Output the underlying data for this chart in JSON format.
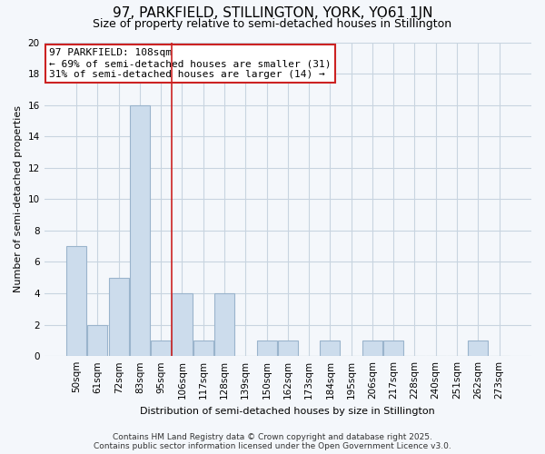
{
  "title": "97, PARKFIELD, STILLINGTON, YORK, YO61 1JN",
  "subtitle": "Size of property relative to semi-detached houses in Stillington",
  "xlabel": "Distribution of semi-detached houses by size in Stillington",
  "ylabel": "Number of semi-detached properties",
  "categories": [
    "50sqm",
    "61sqm",
    "72sqm",
    "83sqm",
    "95sqm",
    "106sqm",
    "117sqm",
    "128sqm",
    "139sqm",
    "150sqm",
    "162sqm",
    "173sqm",
    "184sqm",
    "195sqm",
    "206sqm",
    "217sqm",
    "228sqm",
    "240sqm",
    "251sqm",
    "262sqm",
    "273sqm"
  ],
  "values": [
    7,
    2,
    5,
    16,
    1,
    4,
    1,
    4,
    0,
    1,
    1,
    0,
    1,
    0,
    1,
    1,
    0,
    0,
    0,
    1,
    0
  ],
  "bar_color": "#ccdcec",
  "bar_edge_color": "#9ab4cc",
  "vline_color": "#cc2222",
  "vline_x_index": 4.5,
  "annotation_title": "97 PARKFIELD: 108sqm",
  "annotation_line1": "← 69% of semi-detached houses are smaller (31)",
  "annotation_line2": "31% of semi-detached houses are larger (14) →",
  "annotation_box_facecolor": "#ffffff",
  "annotation_box_edgecolor": "#cc2222",
  "ylim": [
    0,
    20
  ],
  "yticks": [
    0,
    2,
    4,
    6,
    8,
    10,
    12,
    14,
    16,
    18,
    20
  ],
  "footer1": "Contains HM Land Registry data © Crown copyright and database right 2025.",
  "footer2": "Contains public sector information licensed under the Open Government Licence v3.0.",
  "background_color": "#f4f7fb",
  "grid_color": "#c8d4e0",
  "title_fontsize": 11,
  "subtitle_fontsize": 9,
  "axis_label_fontsize": 8,
  "tick_fontsize": 7.5,
  "footer_fontsize": 6.5,
  "annotation_fontsize": 8
}
